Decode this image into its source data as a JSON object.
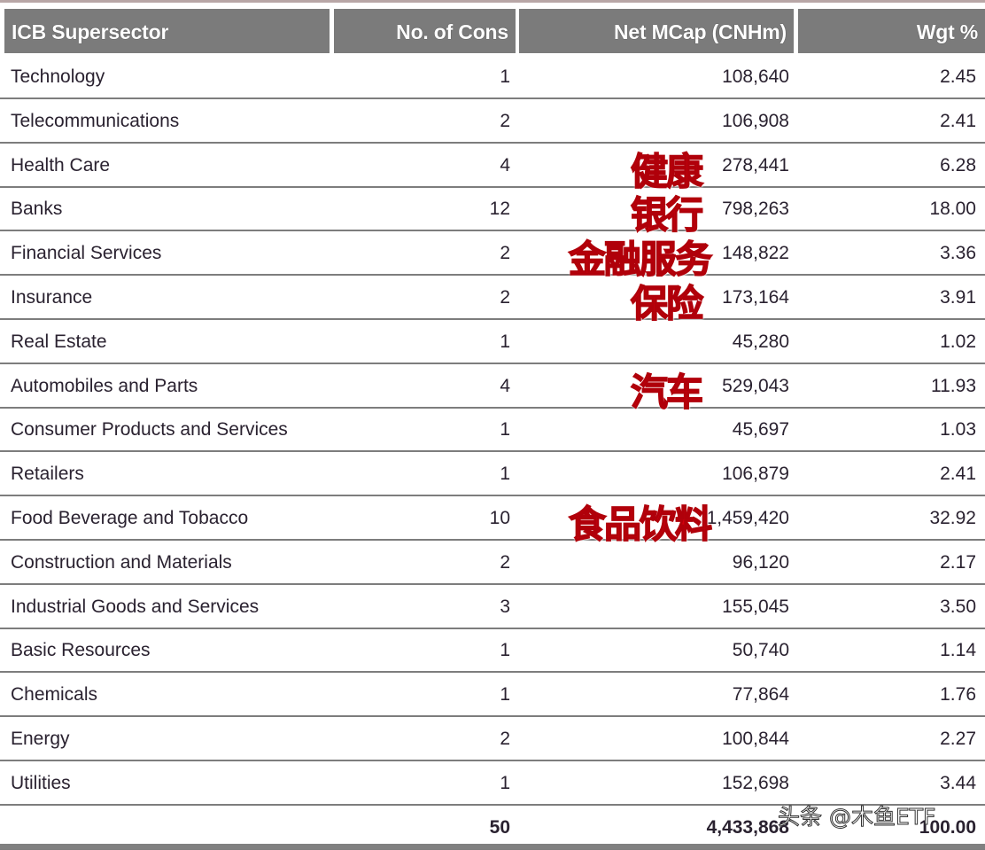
{
  "table": {
    "headers": [
      "ICB Supersector",
      "No. of Cons",
      "Net MCap (CNHm)",
      "Wgt %"
    ],
    "rows": [
      {
        "sector": "Technology",
        "cons": "1",
        "mcap": "108,640",
        "wgt": "2.45"
      },
      {
        "sector": "Telecommunications",
        "cons": "2",
        "mcap": "106,908",
        "wgt": "2.41"
      },
      {
        "sector": "Health Care",
        "cons": "4",
        "mcap": "278,441",
        "wgt": "6.28"
      },
      {
        "sector": "Banks",
        "cons": "12",
        "mcap": "798,263",
        "wgt": "18.00"
      },
      {
        "sector": "Financial Services",
        "cons": "2",
        "mcap": "148,822",
        "wgt": "3.36"
      },
      {
        "sector": "Insurance",
        "cons": "2",
        "mcap": "173,164",
        "wgt": "3.91"
      },
      {
        "sector": "Real Estate",
        "cons": "1",
        "mcap": "45,280",
        "wgt": "1.02"
      },
      {
        "sector": "Automobiles and Parts",
        "cons": "4",
        "mcap": "529,043",
        "wgt": "11.93"
      },
      {
        "sector": "Consumer Products and Services",
        "cons": "1",
        "mcap": "45,697",
        "wgt": "1.03"
      },
      {
        "sector": "Retailers",
        "cons": "1",
        "mcap": "106,879",
        "wgt": "2.41"
      },
      {
        "sector": "Food Beverage and Tobacco",
        "cons": "10",
        "mcap": "1,459,420",
        "wgt": "32.92"
      },
      {
        "sector": "Construction and Materials",
        "cons": "2",
        "mcap": "96,120",
        "wgt": "2.17"
      },
      {
        "sector": "Industrial Goods and Services",
        "cons": "3",
        "mcap": "155,045",
        "wgt": "3.50"
      },
      {
        "sector": "Basic Resources",
        "cons": "1",
        "mcap": "50,740",
        "wgt": "1.14"
      },
      {
        "sector": "Chemicals",
        "cons": "1",
        "mcap": "77,864",
        "wgt": "1.76"
      },
      {
        "sector": "Energy",
        "cons": "2",
        "mcap": "100,844",
        "wgt": "2.27"
      },
      {
        "sector": "Utilities",
        "cons": "1",
        "mcap": "152,698",
        "wgt": "3.44"
      }
    ],
    "total": {
      "sector": "",
      "cons": "50",
      "mcap": "4,433,868",
      "wgt": "100.00"
    }
  },
  "annotations": [
    {
      "text": "健康",
      "row": 2
    },
    {
      "text": "银行",
      "row": 3
    },
    {
      "text": "金融服务",
      "row": 4
    },
    {
      "text": "保险",
      "row": 5
    },
    {
      "text": "汽车",
      "row": 7
    },
    {
      "text": "食品饮料",
      "row": 10
    }
  ],
  "watermark": "头条 @木鱼ETF",
  "colors": {
    "header_bg": "#7b7b7b",
    "annotation": "#d4000c",
    "row_line": "#7d7d7d"
  }
}
